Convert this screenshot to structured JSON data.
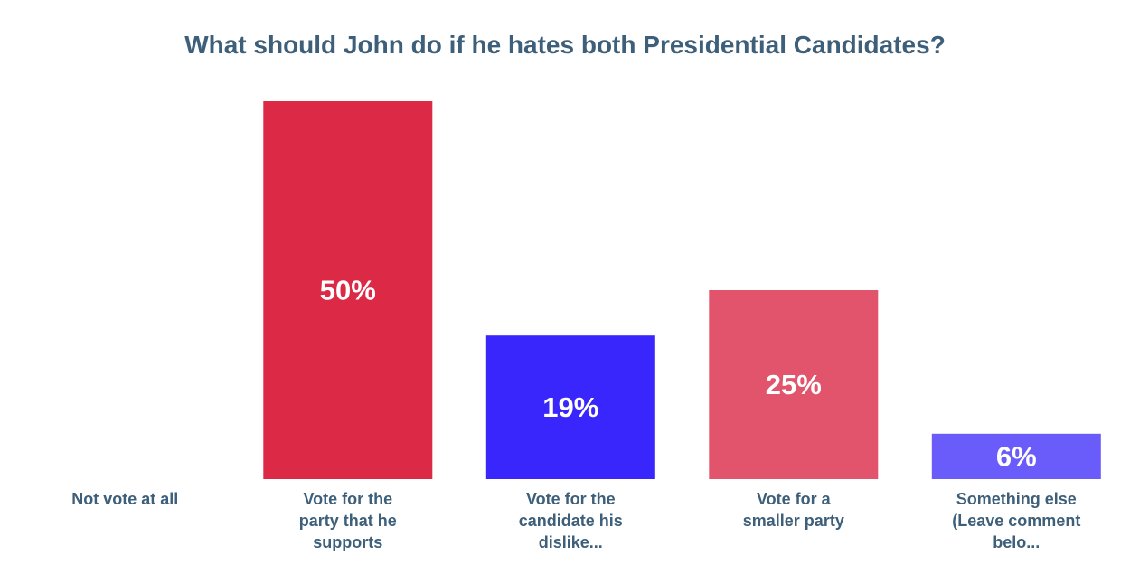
{
  "chart_data": {
    "type": "bar",
    "title": "What should John do if he hates both Presidential Candidates?",
    "xlabel": "",
    "ylabel": "",
    "ylim": [
      0,
      50
    ],
    "grid": false,
    "categories": [
      [
        "Not vote at all"
      ],
      [
        "Vote for the",
        "party that he",
        "supports"
      ],
      [
        "Vote for the",
        "candidate his",
        "dislike..."
      ],
      [
        "Vote for a",
        "smaller party"
      ],
      [
        "Something else",
        "(Leave comment",
        "belo..."
      ]
    ],
    "values": [
      0,
      50,
      19,
      25,
      6
    ],
    "value_labels": [
      "",
      "50%",
      "19%",
      "25%",
      "6%"
    ],
    "colors": [
      "#dc2a46",
      "#dc2a46",
      "#3826fd",
      "#e1546c",
      "#6a5bfb"
    ]
  }
}
